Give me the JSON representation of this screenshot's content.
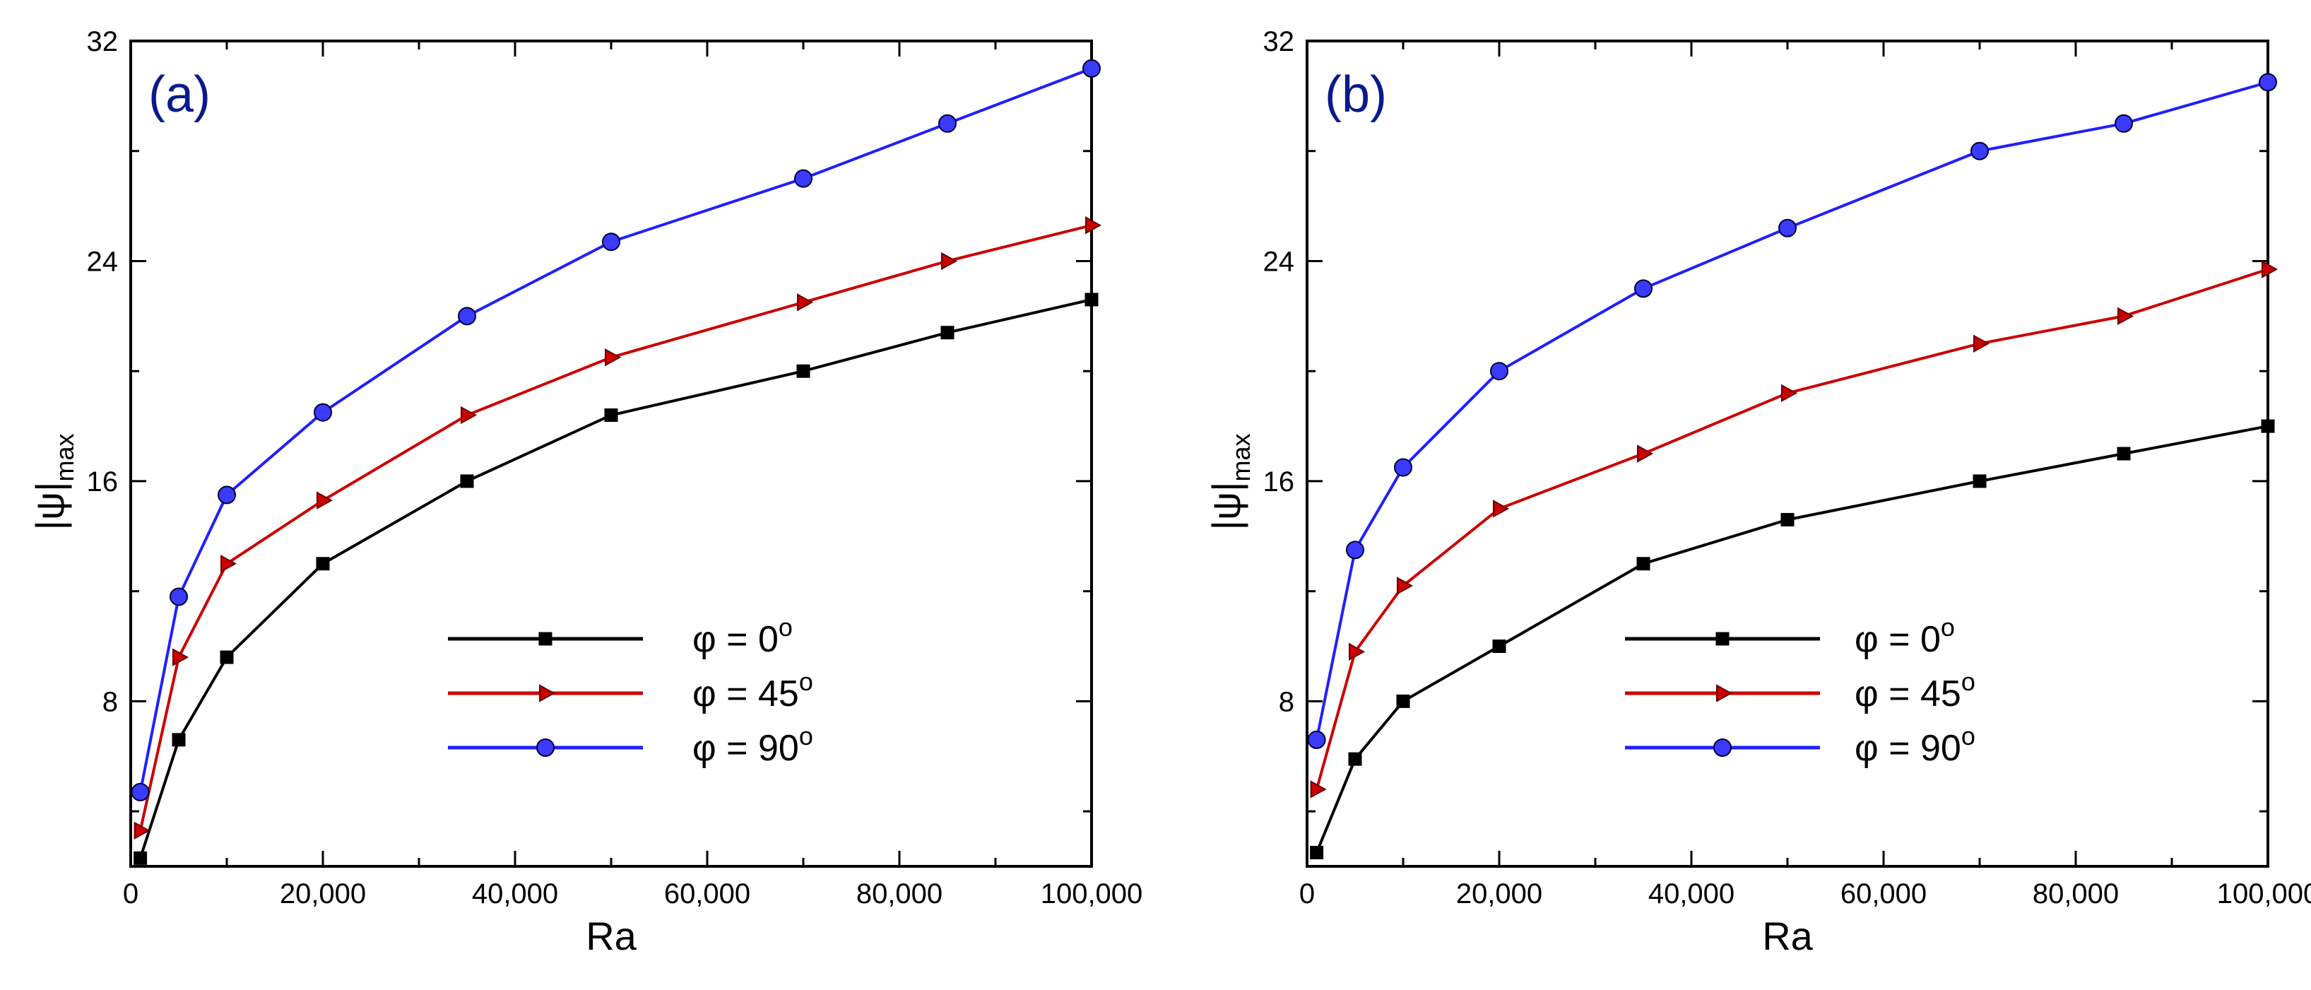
{
  "chart_data": [
    {
      "type": "line",
      "panel_label": "(a)",
      "xlabel": "Ra",
      "ylabel": "|ψ|",
      "ylabel_subscript": "max",
      "xlim": [
        0,
        100000
      ],
      "ylim": [
        2,
        32
      ],
      "x_ticks": [
        0,
        20000,
        40000,
        60000,
        80000,
        100000
      ],
      "x_tick_labels": [
        "0",
        "20,000",
        "40,000",
        "60,000",
        "80,000",
        "100,000"
      ],
      "y_ticks": [
        8,
        16,
        24,
        32
      ],
      "y_tick_labels": [
        "8",
        "16",
        "24",
        "32"
      ],
      "legend_position": "lower-right",
      "x": [
        1000,
        5000,
        10000,
        20000,
        35000,
        50000,
        70000,
        85000,
        100000
      ],
      "series": [
        {
          "name": "φ = 0",
          "superscript": "o",
          "color": "#000000",
          "marker": "square",
          "values": [
            2.3,
            6.6,
            9.6,
            13.0,
            16.0,
            18.4,
            20.0,
            21.4,
            22.6
          ]
        },
        {
          "name": "φ = 45",
          "superscript": "o",
          "color": "#cc0000",
          "marker": "triangle-right",
          "values": [
            3.3,
            9.6,
            13.0,
            15.3,
            18.4,
            20.5,
            22.5,
            24.0,
            25.3
          ]
        },
        {
          "name": "φ = 90",
          "superscript": "o",
          "color": "#1f1fff",
          "marker": "circle",
          "values": [
            4.7,
            11.8,
            15.5,
            18.5,
            22.0,
            24.7,
            27.0,
            29.0,
            31.0
          ]
        }
      ]
    },
    {
      "type": "line",
      "panel_label": "(b)",
      "xlabel": "Ra",
      "ylabel": "|ψ|",
      "ylabel_subscript": "max",
      "xlim": [
        0,
        100000
      ],
      "ylim": [
        2,
        32
      ],
      "x_ticks": [
        0,
        20000,
        40000,
        60000,
        80000,
        100000
      ],
      "x_tick_labels": [
        "0",
        "20,000",
        "40,000",
        "60,000",
        "80,000",
        "100,000"
      ],
      "y_ticks": [
        8,
        16,
        24,
        32
      ],
      "y_tick_labels": [
        "8",
        "16",
        "24",
        "32"
      ],
      "legend_position": "lower-right",
      "x": [
        1000,
        5000,
        10000,
        20000,
        35000,
        50000,
        70000,
        85000,
        100000
      ],
      "series": [
        {
          "name": "φ = 0",
          "superscript": "o",
          "color": "#000000",
          "marker": "square",
          "values": [
            2.5,
            5.9,
            8.0,
            10.0,
            13.0,
            14.6,
            16.0,
            17.0,
            18.0
          ]
        },
        {
          "name": "φ = 45",
          "superscript": "o",
          "color": "#cc0000",
          "marker": "triangle-right",
          "values": [
            4.8,
            9.8,
            12.2,
            15.0,
            17.0,
            19.2,
            21.0,
            22.0,
            23.7
          ]
        },
        {
          "name": "φ = 90",
          "superscript": "o",
          "color": "#1f1fff",
          "marker": "circle",
          "values": [
            6.6,
            13.5,
            16.5,
            20.0,
            23.0,
            25.2,
            28.0,
            29.0,
            30.5
          ]
        }
      ]
    }
  ],
  "colors": {
    "panel_label": "#0a1a8c",
    "axis": "#000000"
  }
}
